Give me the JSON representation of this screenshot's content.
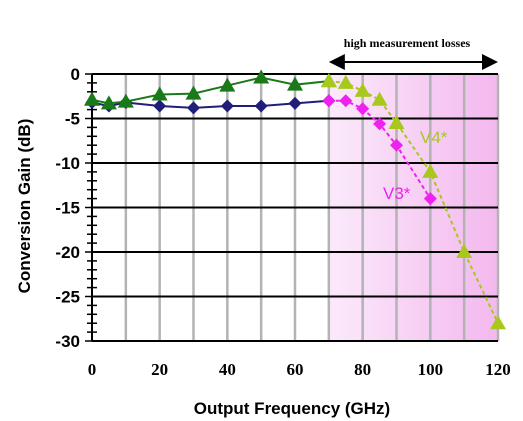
{
  "chart_data": {
    "type": "line",
    "xlabel": "Output Frequency (GHz)",
    "ylabel": "Conversion Gain (dB)",
    "xlim": [
      0,
      120
    ],
    "ylim": [
      -30,
      0
    ],
    "x_ticks": [
      "0",
      "20",
      "40",
      "60",
      "80",
      "100",
      "120"
    ],
    "y_ticks": [
      "0",
      "-5",
      "-10",
      "-15",
      "-20",
      "-25",
      "-30"
    ],
    "grid": "vertical major lines at every 10 GHz, horizontal at every 5 dB",
    "shaded_region": {
      "from": 70,
      "to": 120,
      "color": "#f7c8f2"
    },
    "annotation": {
      "text": "high measurement losses",
      "arrow_from": 70,
      "arrow_to": 120
    },
    "series": [
      {
        "key": "navy",
        "color": "#1f1f7a",
        "marker": "diamond",
        "x": [
          0,
          5,
          10,
          20,
          30,
          40,
          50,
          60,
          70
        ],
        "values": [
          -3.2,
          -3.6,
          -3.2,
          -3.6,
          -3.8,
          -3.6,
          -3.6,
          -3.3,
          -3.0
        ]
      },
      {
        "key": "green",
        "color": "#1a7a1a",
        "marker": "triangle",
        "x": [
          0,
          5,
          10,
          20,
          30,
          40,
          50,
          60,
          70
        ],
        "values": [
          -2.9,
          -3.3,
          -3.1,
          -2.3,
          -2.2,
          -1.3,
          -0.4,
          -1.2,
          -0.8
        ]
      },
      {
        "name": "V3*",
        "color": "#ee22ee",
        "marker": "diamond",
        "dashed": true,
        "x": [
          70,
          75,
          80,
          85,
          90,
          100
        ],
        "values": [
          -3.0,
          -3.0,
          -3.9,
          -5.6,
          -8.0,
          -14.0
        ]
      },
      {
        "name": "V4*",
        "color": "#a8c81e",
        "marker": "triangle",
        "dashed": true,
        "x": [
          70,
          75,
          80,
          85,
          90,
          100,
          110,
          120
        ],
        "values": [
          -0.8,
          -1.0,
          -1.9,
          -2.9,
          -5.5,
          -11.0,
          -20.0,
          -28.0
        ]
      }
    ]
  }
}
